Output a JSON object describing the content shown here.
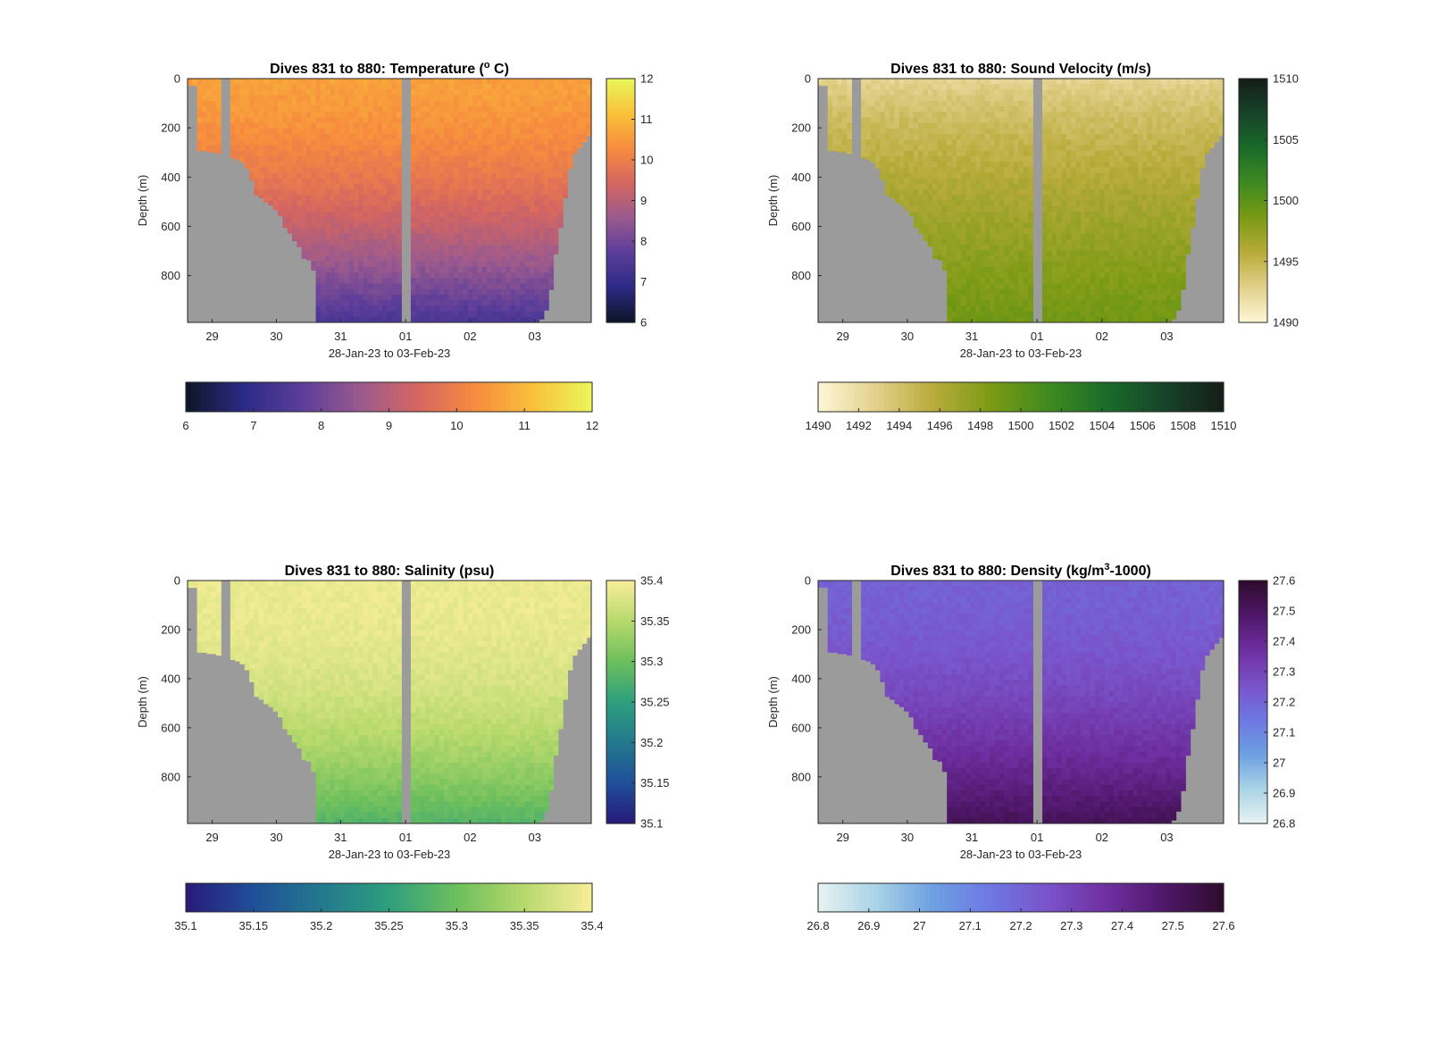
{
  "chart_data": [
    {
      "type": "heatmap",
      "title": "Dives 831 to 880: Temperature (° C)",
      "title_parts": [
        "Dives 831 to 880: Temperature (",
        "o",
        " C)"
      ],
      "xlabel": "28-Jan-23 to 03-Feb-23",
      "ylabel": "Depth (m)",
      "x_ticks": [
        "29",
        "30",
        "31",
        "01",
        "02",
        "03"
      ],
      "y_ticks": [
        "0",
        "200",
        "400",
        "600",
        "800"
      ],
      "ylim": [
        0,
        990
      ],
      "colorbar_ticks": [
        "6",
        "7",
        "8",
        "9",
        "10",
        "11",
        "12"
      ],
      "horizontal_colorbar_ticks": [
        "6",
        "7",
        "8",
        "9",
        "10",
        "11",
        "12"
      ],
      "clim": [
        6,
        12
      ],
      "colormap": [
        "#0c1526",
        "#2c2b86",
        "#5b3d9a",
        "#9a5a8e",
        "#d56660",
        "#f78c3e",
        "#f9c23a",
        "#e9f75a"
      ],
      "surface_value": 10.6,
      "deep_value": 7.4,
      "depth_gradient_exponent": 1.6
    },
    {
      "type": "heatmap",
      "title": "Dives 831 to 880: Sound Velocity (m/s)",
      "title_parts": [
        "Dives 831 to 880: Sound Velocity (m/s)"
      ],
      "xlabel": "28-Jan-23 to 03-Feb-23",
      "ylabel": "Depth (m)",
      "x_ticks": [
        "29",
        "30",
        "31",
        "01",
        "02",
        "03"
      ],
      "y_ticks": [
        "0",
        "200",
        "400",
        "600",
        "800"
      ],
      "ylim": [
        0,
        990
      ],
      "colorbar_ticks": [
        "1490",
        "1495",
        "1500",
        "1505",
        "1510"
      ],
      "horizontal_colorbar_ticks": [
        "1490",
        "1492",
        "1494",
        "1496",
        "1498",
        "1500",
        "1502",
        "1504",
        "1506",
        "1508",
        "1510"
      ],
      "clim": [
        1490,
        1510
      ],
      "colormap": [
        "#fcf7d5",
        "#e3d08c",
        "#b8ab3a",
        "#7a9a14",
        "#3e8a20",
        "#1a6b2a",
        "#17432a",
        "#141d17"
      ],
      "surface_value": 1492.4,
      "deep_value": 1499.0,
      "depth_gradient_exponent": 0.7
    },
    {
      "type": "heatmap",
      "title": "Dives 831 to 880: Salinity (psu)",
      "title_parts": [
        "Dives 831 to 880: Salinity (psu)"
      ],
      "xlabel": "28-Jan-23 to 03-Feb-23",
      "ylabel": "Depth (m)",
      "x_ticks": [
        "29",
        "30",
        "31",
        "01",
        "02",
        "03"
      ],
      "y_ticks": [
        "0",
        "200",
        "400",
        "600",
        "800"
      ],
      "ylim": [
        0,
        990
      ],
      "colorbar_ticks": [
        "35.1",
        "35.15",
        "35.2",
        "35.25",
        "35.3",
        "35.35",
        "35.4"
      ],
      "horizontal_colorbar_ticks": [
        "35.1",
        "35.15",
        "35.2",
        "35.25",
        "35.3",
        "35.35",
        "35.4"
      ],
      "clim": [
        35.1,
        35.4
      ],
      "colormap": [
        "#281a78",
        "#1f4f98",
        "#23798e",
        "#2e9f7e",
        "#6dbf5d",
        "#b7d96c",
        "#f8ee9a"
      ],
      "surface_value": 35.39,
      "deep_value": 35.28,
      "depth_gradient_exponent": 2.2
    },
    {
      "type": "heatmap",
      "title": "Dives 831 to 880: Density (kg/m³-1000)",
      "title_parts": [
        "Dives 831 to 880: Density (kg/m",
        "3",
        "-1000)"
      ],
      "xlabel": "28-Jan-23 to 03-Feb-23",
      "ylabel": "Depth (m)",
      "x_ticks": [
        "29",
        "30",
        "31",
        "01",
        "02",
        "03"
      ],
      "y_ticks": [
        "0",
        "200",
        "400",
        "600",
        "800"
      ],
      "ylim": [
        0,
        990
      ],
      "colorbar_ticks": [
        "26.8",
        "26.9",
        "27",
        "27.1",
        "27.2",
        "27.3",
        "27.4",
        "27.5",
        "27.6"
      ],
      "horizontal_colorbar_ticks": [
        "26.8",
        "26.9",
        "27",
        "27.1",
        "27.2",
        "27.3",
        "27.4",
        "27.5",
        "27.6"
      ],
      "clim": [
        26.8,
        27.6
      ],
      "colormap": [
        "#e8f3f3",
        "#a9d3e6",
        "#6d9fe2",
        "#6e77e2",
        "#7a52c8",
        "#6e2fa0",
        "#4f1769",
        "#2e0b2c"
      ],
      "surface_value": 27.21,
      "deep_value": 27.52,
      "depth_gradient_exponent": 1.8
    }
  ],
  "colors": {
    "background": "#ffffff",
    "seabed_mask": "#9b9b9b",
    "axis": "#262626"
  }
}
